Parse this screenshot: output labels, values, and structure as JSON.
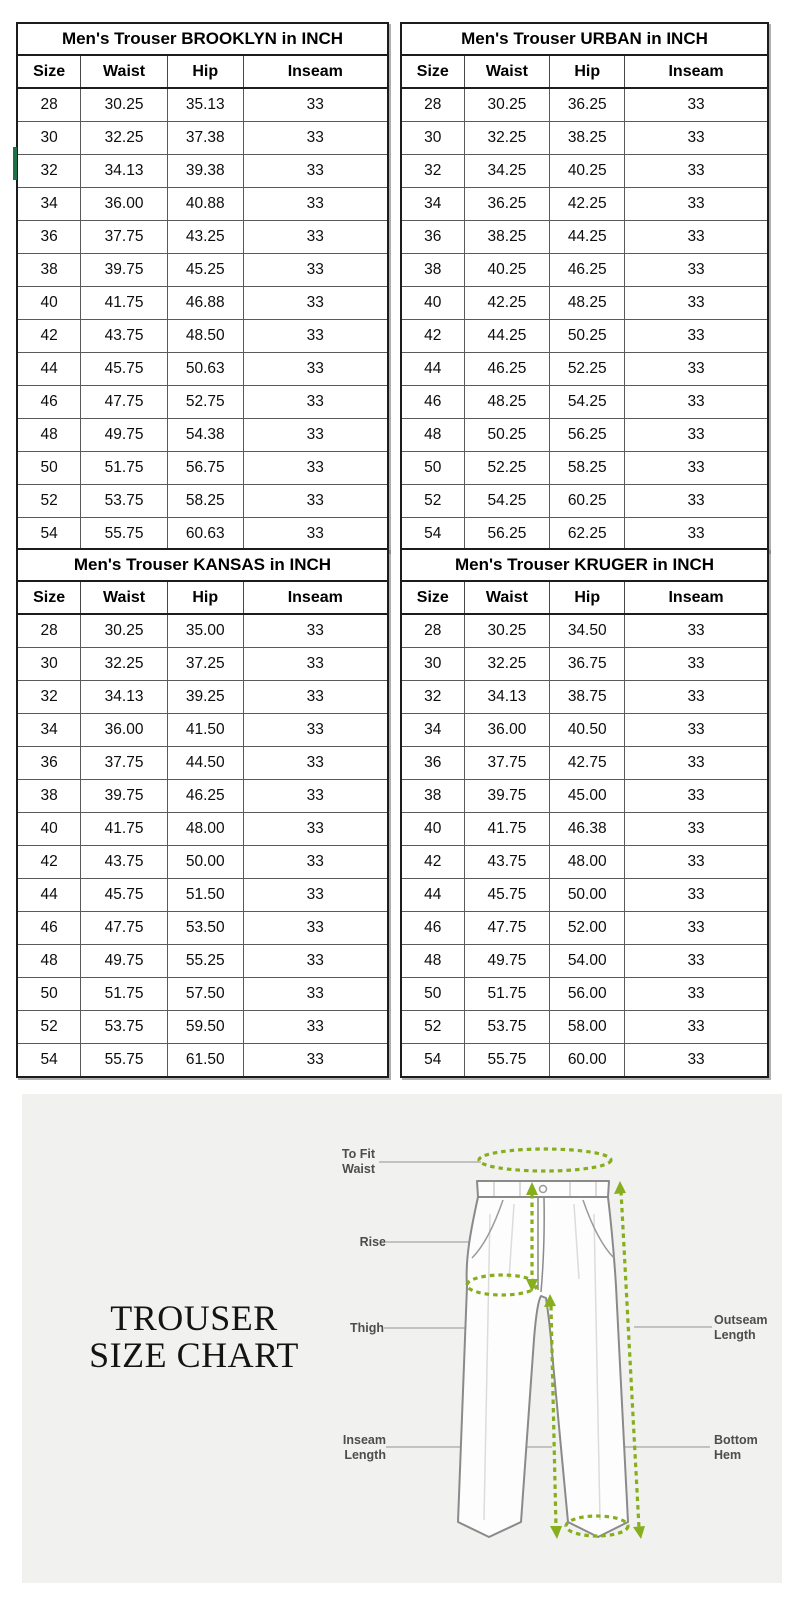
{
  "tables": [
    {
      "title": "Men's Trouser BROOKLYN in INCH",
      "columns": [
        "Size",
        "Waist",
        "Hip",
        "Inseam"
      ],
      "rows": [
        [
          "28",
          "30.25",
          "35.13",
          "33"
        ],
        [
          "30",
          "32.25",
          "37.38",
          "33"
        ],
        [
          "32",
          "34.13",
          "39.38",
          "33"
        ],
        [
          "34",
          "36.00",
          "40.88",
          "33"
        ],
        [
          "36",
          "37.75",
          "43.25",
          "33"
        ],
        [
          "38",
          "39.75",
          "45.25",
          "33"
        ],
        [
          "40",
          "41.75",
          "46.88",
          "33"
        ],
        [
          "42",
          "43.75",
          "48.50",
          "33"
        ],
        [
          "44",
          "45.75",
          "50.63",
          "33"
        ],
        [
          "46",
          "47.75",
          "52.75",
          "33"
        ],
        [
          "48",
          "49.75",
          "54.38",
          "33"
        ],
        [
          "50",
          "51.75",
          "56.75",
          "33"
        ],
        [
          "52",
          "53.75",
          "58.25",
          "33"
        ],
        [
          "54",
          "55.75",
          "60.63",
          "33"
        ]
      ]
    },
    {
      "title": "Men's Trouser URBAN in INCH",
      "columns": [
        "Size",
        "Waist",
        "Hip",
        "Inseam"
      ],
      "rows": [
        [
          "28",
          "30.25",
          "36.25",
          "33"
        ],
        [
          "30",
          "32.25",
          "38.25",
          "33"
        ],
        [
          "32",
          "34.25",
          "40.25",
          "33"
        ],
        [
          "34",
          "36.25",
          "42.25",
          "33"
        ],
        [
          "36",
          "38.25",
          "44.25",
          "33"
        ],
        [
          "38",
          "40.25",
          "46.25",
          "33"
        ],
        [
          "40",
          "42.25",
          "48.25",
          "33"
        ],
        [
          "42",
          "44.25",
          "50.25",
          "33"
        ],
        [
          "44",
          "46.25",
          "52.25",
          "33"
        ],
        [
          "46",
          "48.25",
          "54.25",
          "33"
        ],
        [
          "48",
          "50.25",
          "56.25",
          "33"
        ],
        [
          "50",
          "52.25",
          "58.25",
          "33"
        ],
        [
          "52",
          "54.25",
          "60.25",
          "33"
        ],
        [
          "54",
          "56.25",
          "62.25",
          "33"
        ]
      ]
    },
    {
      "title": "Men's Trouser KANSAS in INCH",
      "columns": [
        "Size",
        "Waist",
        "Hip",
        "Inseam"
      ],
      "rows": [
        [
          "28",
          "30.25",
          "35.00",
          "33"
        ],
        [
          "30",
          "32.25",
          "37.25",
          "33"
        ],
        [
          "32",
          "34.13",
          "39.25",
          "33"
        ],
        [
          "34",
          "36.00",
          "41.50",
          "33"
        ],
        [
          "36",
          "37.75",
          "44.50",
          "33"
        ],
        [
          "38",
          "39.75",
          "46.25",
          "33"
        ],
        [
          "40",
          "41.75",
          "48.00",
          "33"
        ],
        [
          "42",
          "43.75",
          "50.00",
          "33"
        ],
        [
          "44",
          "45.75",
          "51.50",
          "33"
        ],
        [
          "46",
          "47.75",
          "53.50",
          "33"
        ],
        [
          "48",
          "49.75",
          "55.25",
          "33"
        ],
        [
          "50",
          "51.75",
          "57.50",
          "33"
        ],
        [
          "52",
          "53.75",
          "59.50",
          "33"
        ],
        [
          "54",
          "55.75",
          "61.50",
          "33"
        ]
      ]
    },
    {
      "title": "Men's Trouser KRUGER in INCH",
      "columns": [
        "Size",
        "Waist",
        "Hip",
        "Inseam"
      ],
      "rows": [
        [
          "28",
          "30.25",
          "34.50",
          "33"
        ],
        [
          "30",
          "32.25",
          "36.75",
          "33"
        ],
        [
          "32",
          "34.13",
          "38.75",
          "33"
        ],
        [
          "34",
          "36.00",
          "40.50",
          "33"
        ],
        [
          "36",
          "37.75",
          "42.75",
          "33"
        ],
        [
          "38",
          "39.75",
          "45.00",
          "33"
        ],
        [
          "40",
          "41.75",
          "46.38",
          "33"
        ],
        [
          "42",
          "43.75",
          "48.00",
          "33"
        ],
        [
          "44",
          "45.75",
          "50.00",
          "33"
        ],
        [
          "46",
          "47.75",
          "52.00",
          "33"
        ],
        [
          "48",
          "49.75",
          "54.00",
          "33"
        ],
        [
          "50",
          "51.75",
          "56.00",
          "33"
        ],
        [
          "52",
          "53.75",
          "58.00",
          "33"
        ],
        [
          "54",
          "55.75",
          "60.00",
          "33"
        ]
      ]
    }
  ],
  "diagram": {
    "heading": [
      "TROUSER",
      "SIZE CHART"
    ],
    "labels": [
      {
        "id": "to-fit-waist",
        "lines": [
          "To Fit",
          "Waist"
        ]
      },
      {
        "id": "rise",
        "lines": [
          "Rise"
        ]
      },
      {
        "id": "thigh",
        "lines": [
          "Thigh"
        ]
      },
      {
        "id": "outseam-length",
        "lines": [
          "Outseam",
          "Length"
        ]
      },
      {
        "id": "inseam-length",
        "lines": [
          "Inseam",
          "Length"
        ]
      },
      {
        "id": "bottom-hem",
        "lines": [
          "Bottom",
          "Hem"
        ]
      }
    ]
  },
  "colors": {
    "measure_green": "#86ae1d",
    "panel_background": "#f1f1ef",
    "table_border": "#1c1c1c",
    "selection_green": "#1e7145"
  }
}
